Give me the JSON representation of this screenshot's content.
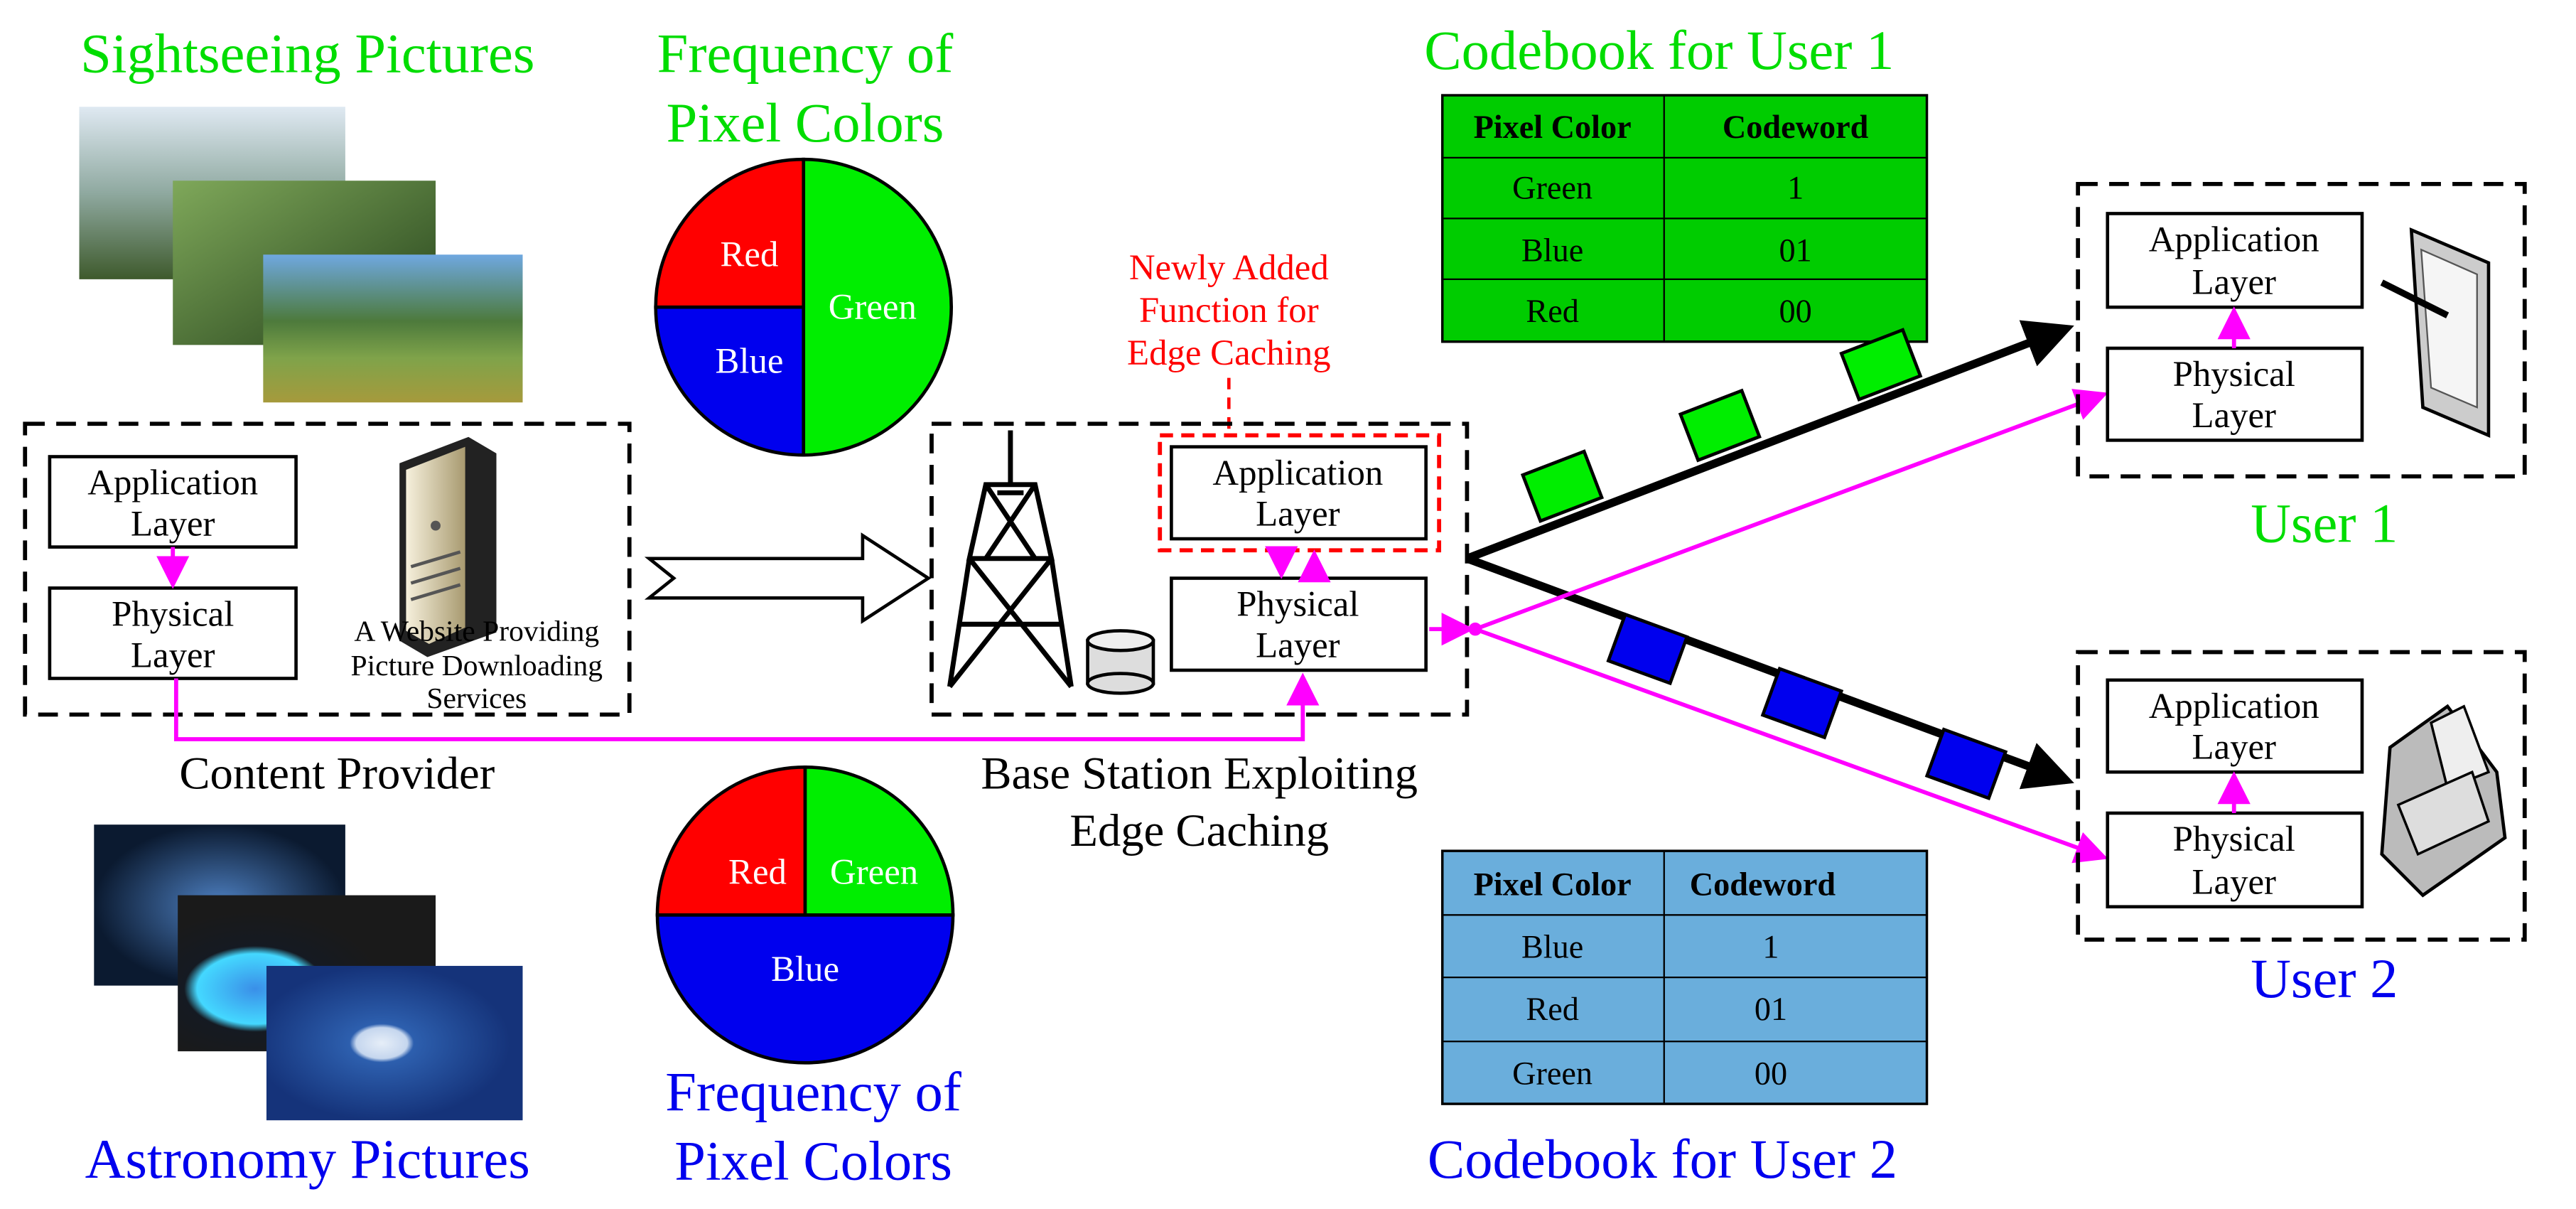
{
  "colors": {
    "green": "#00dd00",
    "blue": "#0000ee",
    "red": "#ff0000",
    "magenta": "#ff00ff",
    "table1_bg": "#00cc00",
    "table2_bg": "#6aaedc"
  },
  "sightseeing": {
    "title": "Sightseeing Pictures"
  },
  "astronomy": {
    "title": "Astronomy Pictures"
  },
  "pie_top": {
    "title_line1": "Frequency of",
    "title_line2": "Pixel Colors",
    "slices": [
      {
        "label": "Green",
        "share": 0.5
      },
      {
        "label": "Red",
        "share": 0.25
      },
      {
        "label": "Blue",
        "share": 0.25
      }
    ]
  },
  "pie_bottom": {
    "title_line1": "Frequency of",
    "title_line2": "Pixel Colors",
    "slices": [
      {
        "label": "Blue",
        "share": 0.5
      },
      {
        "label": "Red",
        "share": 0.25
      },
      {
        "label": "Green",
        "share": 0.25
      }
    ]
  },
  "codebook1": {
    "title": "Codebook for User 1",
    "headers": [
      "Pixel Color",
      "Codeword"
    ],
    "rows": [
      [
        "Green",
        "1"
      ],
      [
        "Blue",
        "01"
      ],
      [
        "Red",
        "00"
      ]
    ]
  },
  "codebook2": {
    "title": "Codebook for User 2",
    "headers": [
      "Pixel Color",
      "Codeword"
    ],
    "rows": [
      [
        "Blue",
        "1"
      ],
      [
        "Red",
        "01"
      ],
      [
        "Green",
        "00"
      ]
    ]
  },
  "new_function": {
    "line1": "Newly Added",
    "line2": "Function for",
    "line3": "Edge Caching"
  },
  "content_provider": {
    "label": "Content Provider",
    "app_line1": "Application",
    "app_line2": "Layer",
    "phy_line1": "Physical",
    "phy_line2": "Layer",
    "server_line1": "A Website Providing",
    "server_line2": "Picture Downloading",
    "server_line3": "Services"
  },
  "base_station": {
    "label_line1": "Base Station Exploiting",
    "label_line2": "Edge Caching",
    "app_line1": "Application",
    "app_line2": "Layer",
    "phy_line1": "Physical",
    "phy_line2": "Layer"
  },
  "user1": {
    "label": "User 1",
    "app_line1": "Application",
    "app_line2": "Layer",
    "phy_line1": "Physical",
    "phy_line2": "Layer"
  },
  "user2": {
    "label": "User 2",
    "app_line1": "Application",
    "app_line2": "Layer",
    "phy_line1": "Physical",
    "phy_line2": "Layer"
  }
}
